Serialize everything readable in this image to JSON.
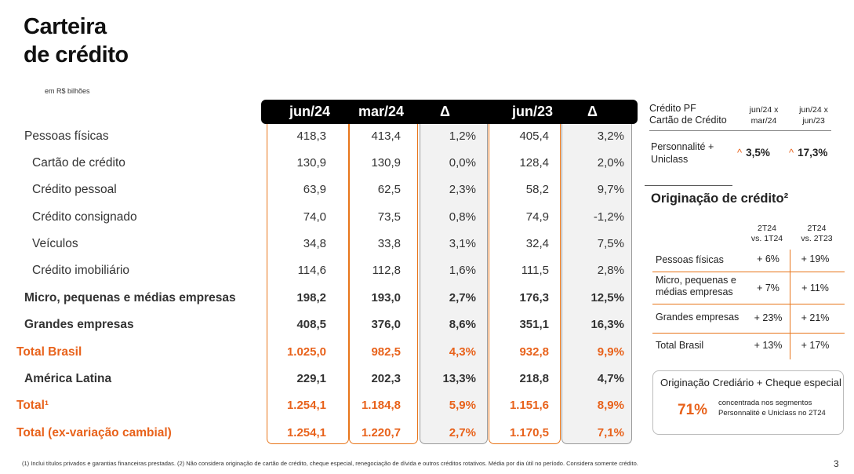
{
  "title": {
    "line1": "Carteira",
    "line2": "de crédito"
  },
  "unit": "em R$ bilhões",
  "table": {
    "headers": [
      "jun/24",
      "mar/24",
      "Δ",
      "jun/23",
      "Δ"
    ],
    "rows": [
      {
        "label": "Pessoas físicas",
        "style": "bold-lite",
        "indent": 0,
        "values": [
          "418,3",
          "413,4",
          "1,2%",
          "405,4",
          "3,2%"
        ]
      },
      {
        "label": "Cartão de crédito",
        "style": "",
        "indent": 1,
        "values": [
          "130,9",
          "130,9",
          "0,0%",
          "128,4",
          "2,0%"
        ]
      },
      {
        "label": "Crédito pessoal",
        "style": "",
        "indent": 1,
        "values": [
          "63,9",
          "62,5",
          "2,3%",
          "58,2",
          "9,7%"
        ]
      },
      {
        "label": "Crédito consignado",
        "style": "",
        "indent": 1,
        "values": [
          "74,0",
          "73,5",
          "0,8%",
          "74,9",
          "-1,2%"
        ]
      },
      {
        "label": "Veículos",
        "style": "",
        "indent": 1,
        "values": [
          "34,8",
          "33,8",
          "3,1%",
          "32,4",
          "7,5%"
        ]
      },
      {
        "label": "Crédito imobiliário",
        "style": "",
        "indent": 1,
        "values": [
          "114,6",
          "112,8",
          "1,6%",
          "111,5",
          "2,8%"
        ]
      },
      {
        "label": "Micro, pequenas e médias empresas",
        "style": "bold",
        "indent": 0,
        "values": [
          "198,2",
          "193,0",
          "2,7%",
          "176,3",
          "12,5%"
        ]
      },
      {
        "label": "Grandes empresas",
        "style": "bold",
        "indent": 0,
        "values": [
          "408,5",
          "376,0",
          "8,6%",
          "351,1",
          "16,3%"
        ]
      },
      {
        "label": "Total Brasil",
        "style": "orange",
        "indent": -1,
        "values": [
          "1.025,0",
          "982,5",
          "4,3%",
          "932,8",
          "9,9%"
        ]
      },
      {
        "label": "América Latina",
        "style": "bold",
        "indent": 0,
        "values": [
          "229,1",
          "202,3",
          "13,3%",
          "218,8",
          "4,7%"
        ]
      },
      {
        "label": "Total¹",
        "style": "orange",
        "indent": -1,
        "values": [
          "1.254,1",
          "1.184,8",
          "5,9%",
          "1.151,6",
          "8,9%"
        ]
      },
      {
        "label": "Total (ex-variação cambial)",
        "style": "orange",
        "indent": -1,
        "values": [
          "1.254,1",
          "1.220,7",
          "2,7%",
          "1.170,5",
          "7,1%"
        ]
      }
    ]
  },
  "cards_panel": {
    "header": "Crédito PF\nCartão de Crédito",
    "col1": "jun/24 x\nmar/24",
    "col2": "jun/24 x\njun/23",
    "row_label": "Personnalité +\nUniclass",
    "val1": "3,5%",
    "val2": "17,3%"
  },
  "origination": {
    "title": "Originação de crédito²",
    "col1": "2T24\nvs. 1T24",
    "col2": "2T24\nvs. 2T23",
    "rows": [
      {
        "label": "Pessoas físicas",
        "a": "+ 6%",
        "b": "+ 19%"
      },
      {
        "label": "Micro, pequenas e\nmédias empresas",
        "a": "+ 7%",
        "b": "+ 11%"
      },
      {
        "label": "Grandes empresas",
        "a": "+ 23%",
        "b": "+ 21%"
      },
      {
        "label": "Total Brasil",
        "a": "+ 13%",
        "b": "+ 17%"
      }
    ]
  },
  "highlight_box": {
    "title": "Originação Crediário + Cheque especial",
    "pct": "71%",
    "text": "concentrada nos segmentos\nPersonnalité e Uniclass no 2T24"
  },
  "footnote": "(1) Inclui títulos privados e garantias financeiras prestadas. (2) Não considera originação de cartão de crédito, cheque especial, renegociação de dívida e outros créditos rotativos. Média por dia útil no período. Considera somente crédito.",
  "page_number": "3",
  "colors": {
    "accent": "#e8621b",
    "header_bg": "#000000",
    "delta_bg": "#f2f2f2"
  }
}
